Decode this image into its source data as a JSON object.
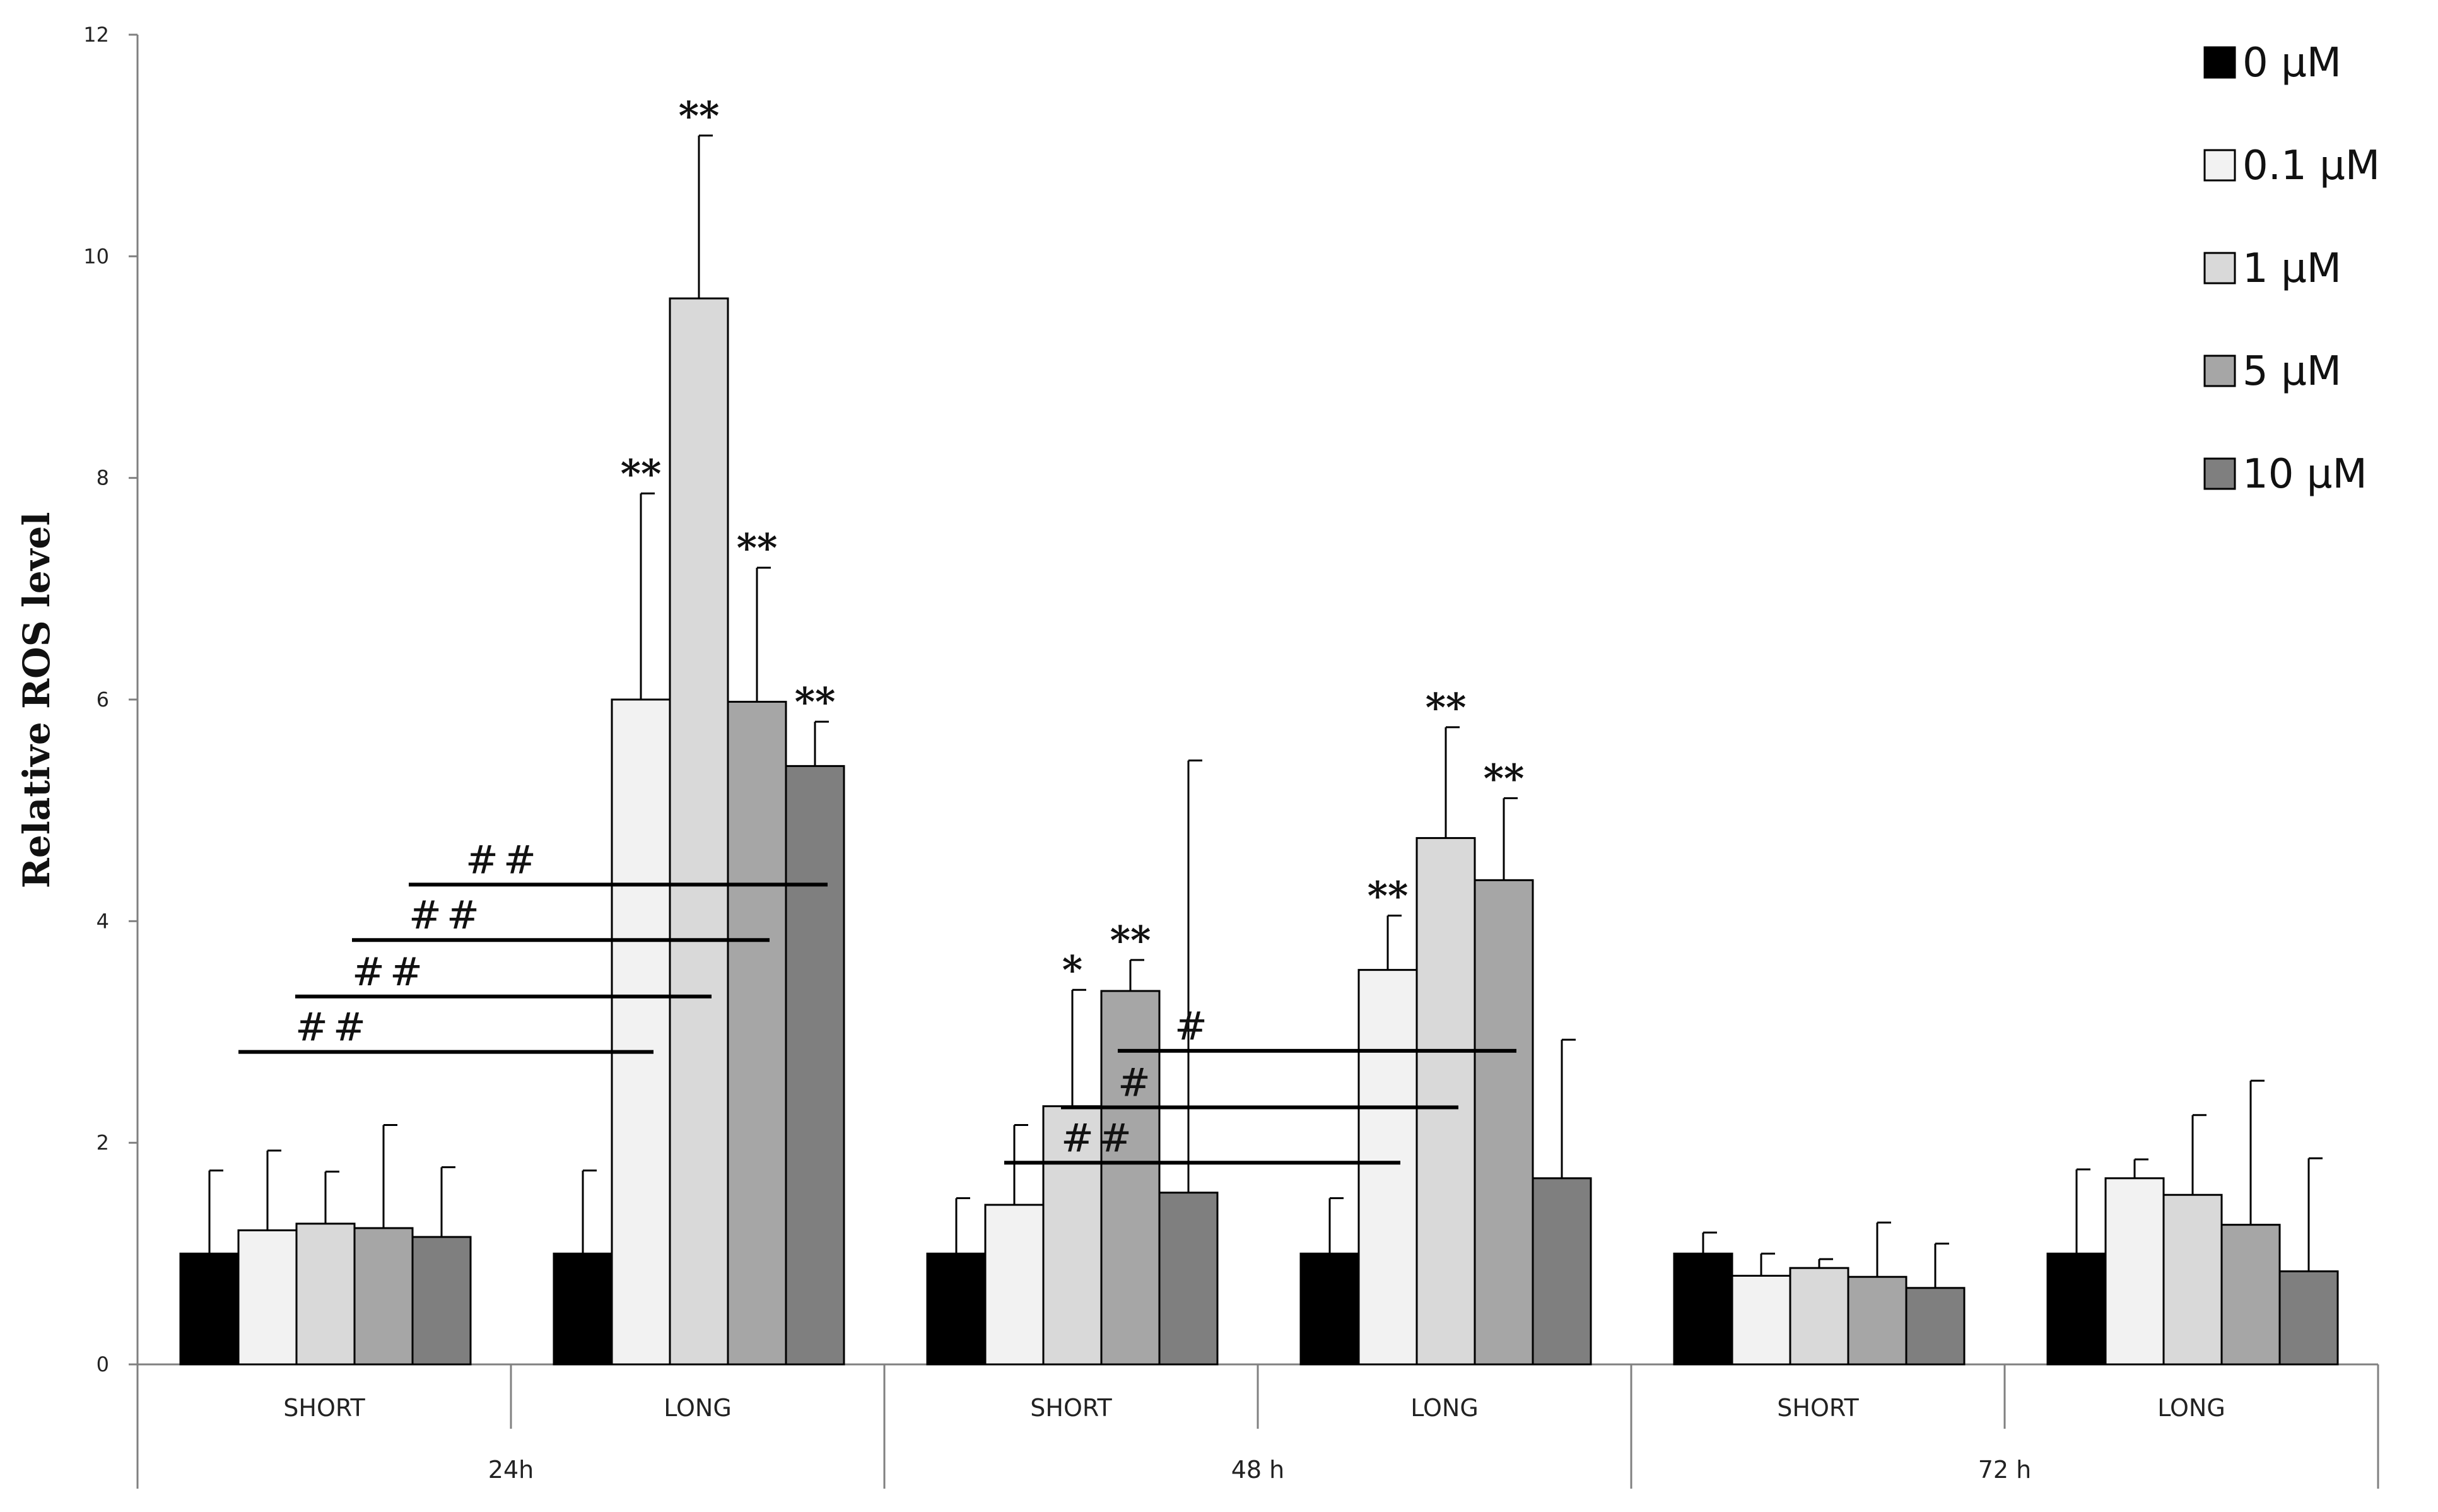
{
  "chart_data": {
    "type": "bar",
    "ylabel": "Relative ROS level",
    "ylim": [
      0,
      12
    ],
    "yticks": [
      0,
      2,
      4,
      6,
      8,
      10,
      12
    ],
    "grid": false,
    "legend_position": "top-right",
    "series": [
      {
        "name": "0 μM",
        "color": "#000000"
      },
      {
        "name": "0.1 μM",
        "color": "#f2f2f2"
      },
      {
        "name": "1 μM",
        "color": "#d9d9d9"
      },
      {
        "name": "5  μM",
        "color": "#a6a6a6"
      },
      {
        "name": "10  μM",
        "color": "#7f7f7f"
      }
    ],
    "outer_groups": [
      {
        "label": "24h",
        "inner": [
          "SHORT",
          "LONG"
        ]
      },
      {
        "label": "48 h",
        "inner": [
          "SHORT",
          "LONG"
        ]
      },
      {
        "label": "72 h",
        "inner": [
          "SHORT",
          "LONG"
        ]
      }
    ],
    "groups": [
      {
        "time": "24h",
        "label": "SHORT",
        "values": [
          1.0,
          1.21,
          1.27,
          1.23,
          1.15
        ],
        "errors": [
          0.75,
          0.72,
          0.47,
          0.93,
          0.63
        ],
        "annotations": [
          "",
          "",
          "",
          "",
          ""
        ]
      },
      {
        "time": "24h",
        "label": "LONG",
        "values": [
          1.0,
          6.0,
          9.62,
          5.98,
          5.4
        ],
        "errors": [
          0.75,
          1.86,
          1.47,
          1.21,
          0.4
        ],
        "annotations": [
          "",
          "**",
          "**",
          "**",
          "**"
        ]
      },
      {
        "time": "48 h",
        "label": "SHORT",
        "values": [
          1.0,
          1.44,
          2.33,
          3.37,
          1.55
        ],
        "errors": [
          0.5,
          0.72,
          1.05,
          0.28,
          3.9
        ],
        "annotations": [
          "",
          "",
          "*",
          "**",
          ""
        ]
      },
      {
        "time": "48 h",
        "label": "LONG",
        "values": [
          1.0,
          3.56,
          4.75,
          4.37,
          1.68
        ],
        "errors": [
          0.5,
          0.49,
          1.0,
          0.74,
          1.25
        ],
        "annotations": [
          "",
          "**",
          "**",
          "**",
          ""
        ]
      },
      {
        "time": "72 h",
        "label": "SHORT",
        "values": [
          1.0,
          0.8,
          0.87,
          0.79,
          0.69
        ],
        "errors": [
          0.19,
          0.2,
          0.08,
          0.49,
          0.4
        ],
        "annotations": [
          "",
          "",
          "",
          "",
          ""
        ]
      },
      {
        "time": "72 h",
        "label": "LONG",
        "values": [
          1.0,
          1.68,
          1.53,
          1.26,
          0.84
        ],
        "errors": [
          0.76,
          0.17,
          0.72,
          1.3,
          1.02
        ],
        "annotations": [
          "",
          "",
          "",
          "",
          ""
        ]
      }
    ],
    "comparison_lines": [
      {
        "label": "##",
        "from_group": 0,
        "to_group": 1,
        "to_series": 4,
        "y": 4.33
      },
      {
        "label": "##",
        "from_group": 0,
        "to_group": 1,
        "to_series": 3,
        "y": 3.83
      },
      {
        "label": "##",
        "from_group": 0,
        "to_group": 1,
        "to_series": 2,
        "y": 3.32
      },
      {
        "label": "##",
        "from_group": 0,
        "to_group": 1,
        "to_series": 1,
        "y": 2.82
      },
      {
        "label": "#",
        "from_group": 2,
        "to_group": 3,
        "to_series": 3,
        "y": 2.83
      },
      {
        "label": "#",
        "from_group": 2,
        "to_group": 3,
        "to_series": 2,
        "y": 2.32
      },
      {
        "label": "##",
        "from_group": 2,
        "to_group": 3,
        "to_series": 1,
        "y": 1.82
      }
    ]
  }
}
